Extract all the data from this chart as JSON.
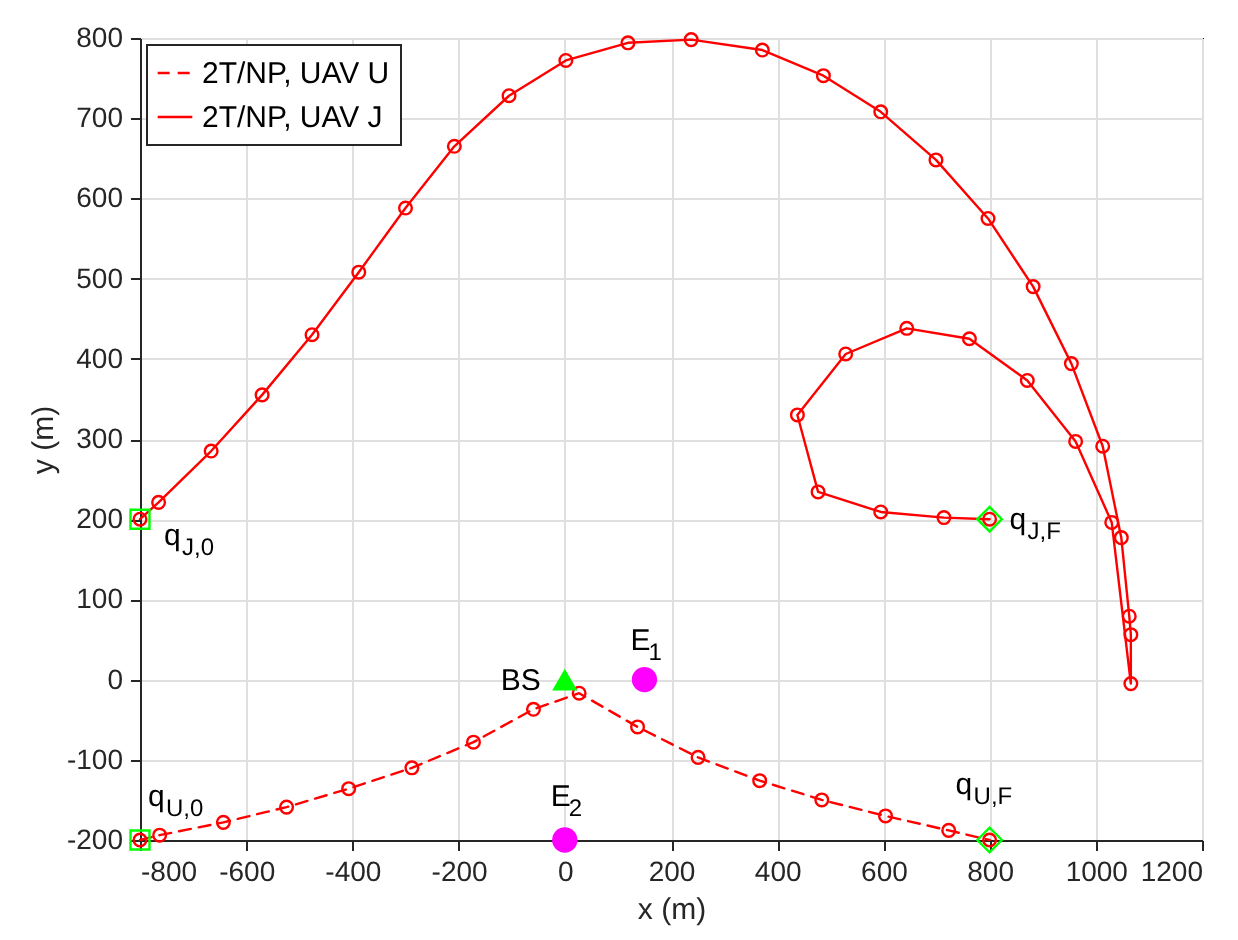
{
  "chart_data": {
    "type": "line",
    "xlabel": "x (m)",
    "ylabel": "y (m)",
    "xlim": [
      -800,
      1200
    ],
    "ylim": [
      -200,
      800
    ],
    "xticks": [
      -800,
      -600,
      -400,
      -200,
      0,
      200,
      400,
      600,
      800,
      1000,
      1200
    ],
    "yticks": [
      -200,
      -100,
      0,
      100,
      200,
      300,
      400,
      500,
      600,
      700,
      800
    ],
    "grid": true,
    "legend": "top left",
    "marker": "circle",
    "series": [
      {
        "name": "2T/NP, UAV U",
        "color": "#ff0000",
        "line_style": "dashed",
        "x": [
          -800,
          -763,
          -643,
          -524,
          -407,
          -288,
          -172,
          -59,
          27,
          137,
          251,
          367,
          484,
          604,
          723,
          800
        ],
        "values": [
          -200,
          -194,
          -178,
          -159,
          -136,
          -110,
          -78,
          -37,
          -17,
          -59,
          -97,
          -126,
          -150,
          -170,
          -188,
          -200
        ]
      },
      {
        "name": "2T/NP, UAV J",
        "color": "#ff0000",
        "line_style": "solid",
        "x": [
          -800,
          -765,
          -666,
          -570,
          -476,
          -388,
          -300,
          -208,
          -105,
          2,
          119,
          238,
          372,
          487,
          595,
          699,
          797,
          882,
          954,
          1013,
          1048,
          1063,
          1066,
          1066,
          1030,
          962,
          871,
          762,
          644,
          529,
          438,
          477,
          595,
          714,
          800
        ],
        "values": [
          200,
          221,
          285,
          355,
          430,
          508,
          588,
          665,
          728,
          772,
          794,
          798,
          785,
          753,
          708,
          648,
          575,
          490,
          394,
          291,
          177,
          79,
          56,
          -5,
          196,
          297,
          373,
          425,
          438,
          406,
          330,
          234,
          209,
          202,
          200
        ]
      },
      {
        "type": "scatter",
        "color": "#00ff00",
        "marker": "square",
        "x": [
          -800,
          -800
        ],
        "values": [
          200,
          -200
        ]
      },
      {
        "type": "scatter",
        "color": "#00ff00",
        "marker": "diamond",
        "x": [
          800,
          800
        ],
        "values": [
          200,
          -200
        ]
      },
      {
        "type": "scatter",
        "color": "#00ff00",
        "marker": "triangle",
        "x": [
          0
        ],
        "values": [
          0
        ]
      },
      {
        "type": "scatter",
        "color": "#ff00ff",
        "marker": "circle",
        "x": [
          150,
          0
        ],
        "values": [
          0,
          -200
        ]
      }
    ],
    "annotations": [
      {
        "text": "q$_{J,0}$",
        "x": -800,
        "y": 200
      },
      {
        "text": "q$_{J,F}$",
        "x": 800,
        "y": 200
      },
      {
        "text": "q$_{U,0}$",
        "x": -800,
        "y": -200
      },
      {
        "text": "q$_{U,F}$",
        "x": 800,
        "y": -200
      },
      {
        "text": "BS",
        "x": 0,
        "y": 0
      },
      {
        "text": "E$_{1}$",
        "x": 150,
        "y": 0
      },
      {
        "text": "E$_{2}$",
        "x": 0,
        "y": -200
      }
    ]
  }
}
